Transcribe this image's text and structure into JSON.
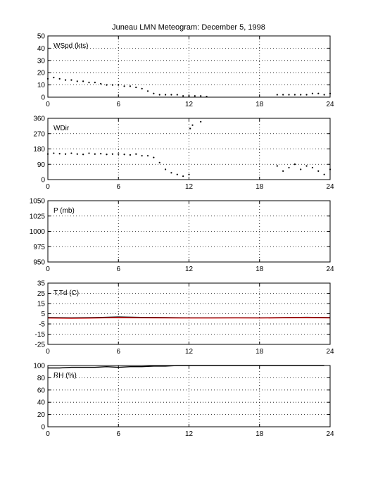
{
  "title": "Juneau LMN Meteogram:  December  5, 1998",
  "chart_data": [
    {
      "type": "scatter",
      "panel_label": "WSpd (kts)",
      "xlim": [
        0,
        24
      ],
      "xticks": [
        0,
        6,
        12,
        18,
        24
      ],
      "ylim": [
        0,
        50
      ],
      "yticks": [
        0,
        10,
        20,
        30,
        40,
        50
      ],
      "grid": true,
      "series": [
        {
          "color": "#000000",
          "x": [
            0.0,
            0.5,
            1.0,
            1.5,
            2.0,
            2.5,
            3.0,
            3.5,
            4.0,
            4.5,
            5.0,
            5.5,
            6.0,
            6.5,
            7.0,
            7.5,
            8.0,
            8.5,
            9.0,
            9.5,
            10.0,
            10.5,
            11.0,
            11.5,
            12.0,
            12.5,
            13.0,
            13.5,
            19.5,
            20.0,
            20.5,
            21.0,
            21.5,
            22.0,
            22.5,
            23.0,
            23.5,
            24.0
          ],
          "y": [
            15,
            16,
            15,
            14,
            14,
            13,
            13,
            12,
            12,
            11,
            10,
            10,
            10,
            9,
            9,
            8,
            7,
            5,
            3,
            2,
            2,
            2,
            2,
            1,
            1,
            1,
            1,
            0.5,
            2,
            2,
            2,
            2,
            2,
            2,
            3,
            3,
            2,
            3
          ]
        }
      ]
    },
    {
      "type": "scatter",
      "panel_label": "WDir",
      "xlim": [
        0,
        24
      ],
      "xticks": [
        0,
        6,
        12,
        18,
        24
      ],
      "ylim": [
        0,
        360
      ],
      "yticks": [
        0,
        90,
        180,
        270,
        360
      ],
      "grid": true,
      "series": [
        {
          "color": "#000000",
          "x": [
            0.0,
            0.5,
            1.0,
            1.5,
            2.0,
            2.5,
            3.0,
            3.5,
            4.0,
            4.5,
            5.0,
            5.5,
            6.0,
            6.5,
            7.0,
            7.5,
            8.0,
            8.5,
            9.0,
            9.5,
            10.0,
            10.5,
            11.0,
            11.5,
            12.0,
            12.1,
            12.3,
            13.0,
            19.5,
            20.0,
            20.5,
            21.0,
            21.5,
            22.0,
            22.5,
            23.0,
            23.5,
            24.0
          ],
          "y": [
            150,
            155,
            152,
            150,
            155,
            150,
            148,
            155,
            150,
            152,
            148,
            150,
            150,
            148,
            145,
            150,
            140,
            140,
            130,
            100,
            60,
            40,
            30,
            20,
            30,
            300,
            320,
            340,
            80,
            50,
            70,
            90,
            60,
            80,
            70,
            50,
            30,
            60
          ]
        }
      ]
    },
    {
      "type": "scatter",
      "panel_label": "P (mb)",
      "xlim": [
        0,
        24
      ],
      "xticks": [
        0,
        6,
        12,
        18,
        24
      ],
      "ylim": [
        950,
        1050
      ],
      "yticks": [
        950,
        975,
        1000,
        1025,
        1050
      ],
      "grid": true,
      "series": []
    },
    {
      "type": "line",
      "panel_label": "T,Td (C)",
      "xlim": [
        0,
        24
      ],
      "xticks": [
        0,
        6,
        12,
        18,
        24
      ],
      "ylim": [
        -25,
        35
      ],
      "yticks": [
        -25,
        -15,
        -5,
        5,
        15,
        25,
        35
      ],
      "grid": true,
      "series": [
        {
          "color": "#000000",
          "x": [
            0,
            2,
            4,
            6,
            8,
            10,
            12,
            14,
            16,
            18,
            20,
            22,
            24
          ],
          "y": [
            1.2,
            1.0,
            1.2,
            1.8,
            1.4,
            1.2,
            1.0,
            1.0,
            1.1,
            1.0,
            1.2,
            1.5,
            1.2
          ]
        },
        {
          "color": "#cc0000",
          "x": [
            0,
            2,
            4,
            6,
            8,
            10,
            12,
            14,
            16,
            18,
            20,
            22,
            24
          ],
          "y": [
            0.8,
            0.6,
            0.8,
            1.3,
            1.0,
            0.9,
            0.8,
            0.8,
            0.9,
            0.8,
            1.0,
            1.2,
            0.9
          ]
        }
      ]
    },
    {
      "type": "line",
      "panel_label": "RH (%)",
      "xlim": [
        0,
        24
      ],
      "xticks": [
        0,
        6,
        12,
        18,
        24
      ],
      "ylim": [
        0,
        100
      ],
      "yticks": [
        0,
        20,
        40,
        60,
        80,
        100
      ],
      "grid": true,
      "series": [
        {
          "color": "#000000",
          "x": [
            0,
            1,
            2,
            3,
            4,
            5,
            6,
            7,
            8,
            9,
            10,
            11,
            12,
            23.5
          ],
          "y": [
            96,
            96,
            97,
            97,
            97,
            98,
            97,
            98,
            98,
            99,
            99,
            100,
            100,
            100
          ]
        }
      ]
    }
  ]
}
